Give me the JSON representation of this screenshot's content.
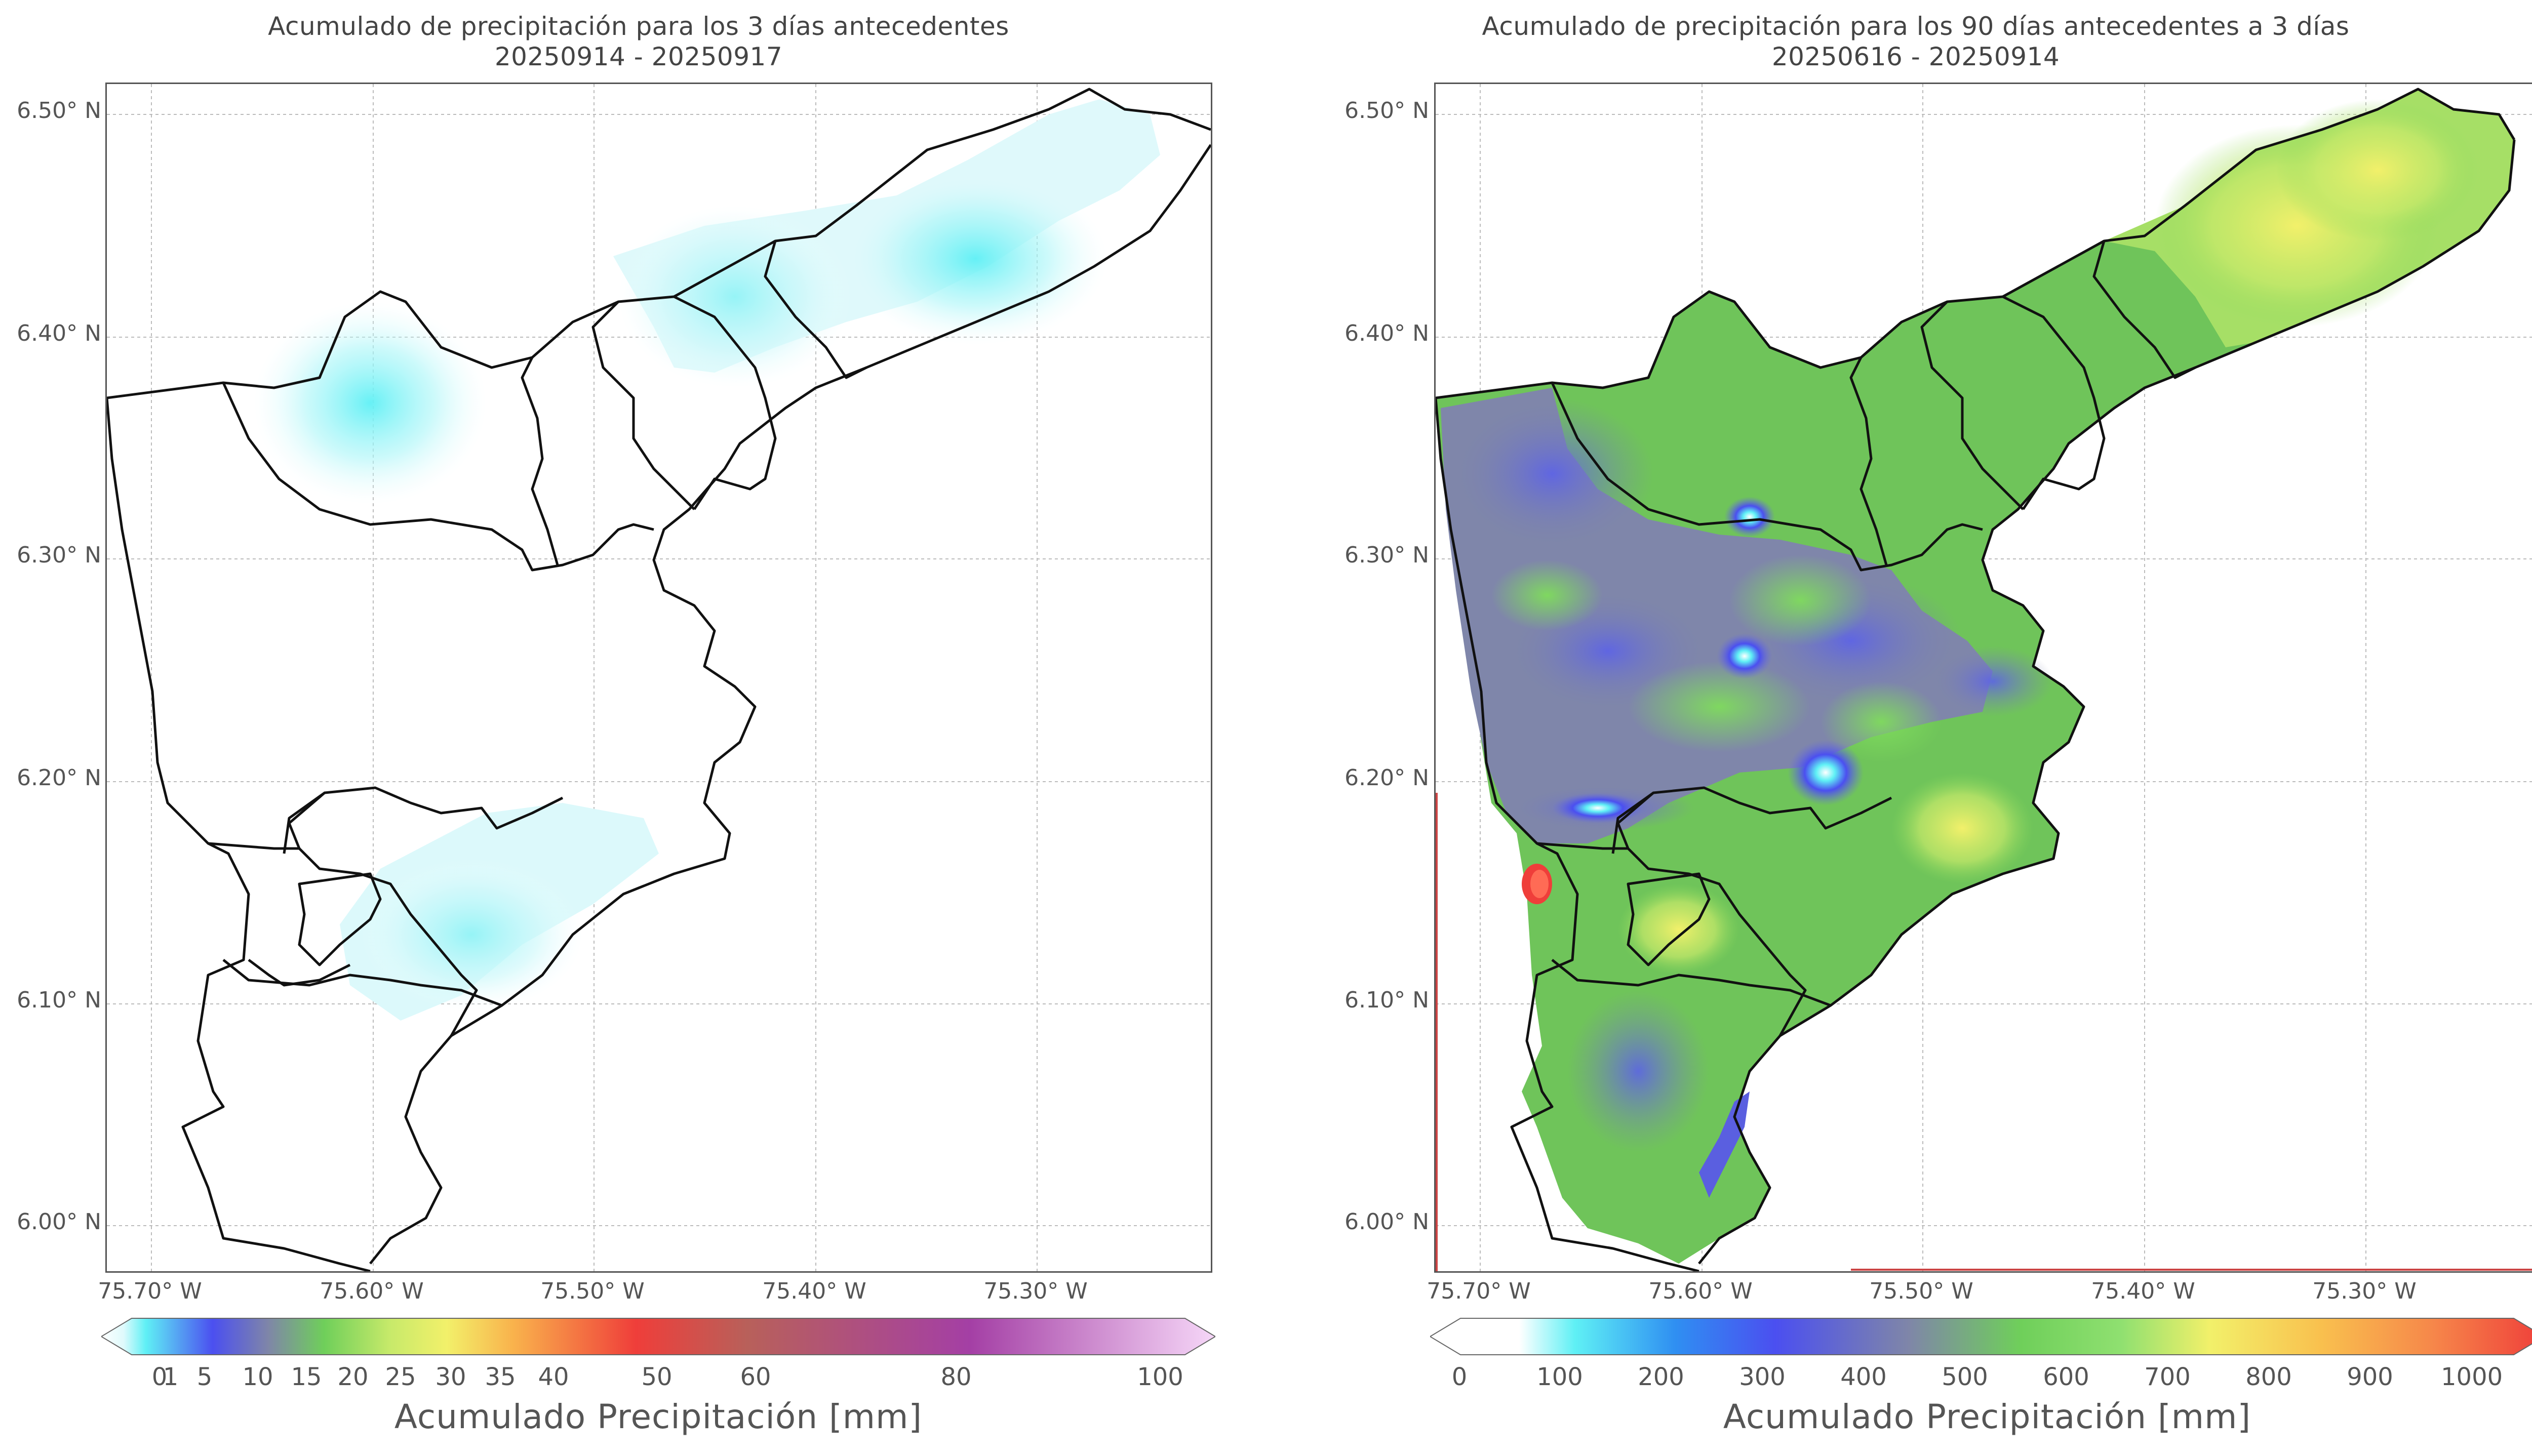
{
  "left_panel": {
    "title_line1": "Acumulado de precipitación para los 3 días antecedentes",
    "title_line2": "20250914 - 20250917",
    "y_ticks": [
      "6.50° N",
      "6.40° N",
      "6.30° N",
      "6.20° N",
      "6.10° N",
      "6.00° N"
    ],
    "x_ticks": [
      "75.70° W",
      "75.60° W",
      "75.50° W",
      "75.40° W",
      "75.30° W"
    ],
    "colorbar": {
      "ticks": [
        "0",
        "1",
        "5",
        "10",
        "15",
        "20",
        "25",
        "30",
        "35",
        "40",
        "50",
        "60",
        "80",
        "100"
      ],
      "label": "Acumulado Precipitación [mm]"
    }
  },
  "right_panel": {
    "title_line1": "Acumulado de precipitación para los 90 días antecedentes a 3 días",
    "title_line2": "20250616 - 20250914",
    "y_ticks": [
      "6.50° N",
      "6.40° N",
      "6.30° N",
      "6.20° N",
      "6.10° N",
      "6.00° N"
    ],
    "x_ticks": [
      "75.70° W",
      "75.60° W",
      "75.50° W",
      "75.40° W",
      "75.30° W"
    ],
    "colorbar": {
      "ticks": [
        "0",
        "100",
        "200",
        "300",
        "400",
        "500",
        "600",
        "700",
        "800",
        "900",
        "1000"
      ],
      "label": "Acumulado Precipitación [mm]"
    }
  },
  "colors": {
    "cyan": "#5ff0f5",
    "blue": "#4b4ff0",
    "slate": "#7f86a8",
    "green": "#6fcf5a",
    "yellow": "#f2f06a",
    "red": "#ef3e3a",
    "outline": "#111111"
  }
}
